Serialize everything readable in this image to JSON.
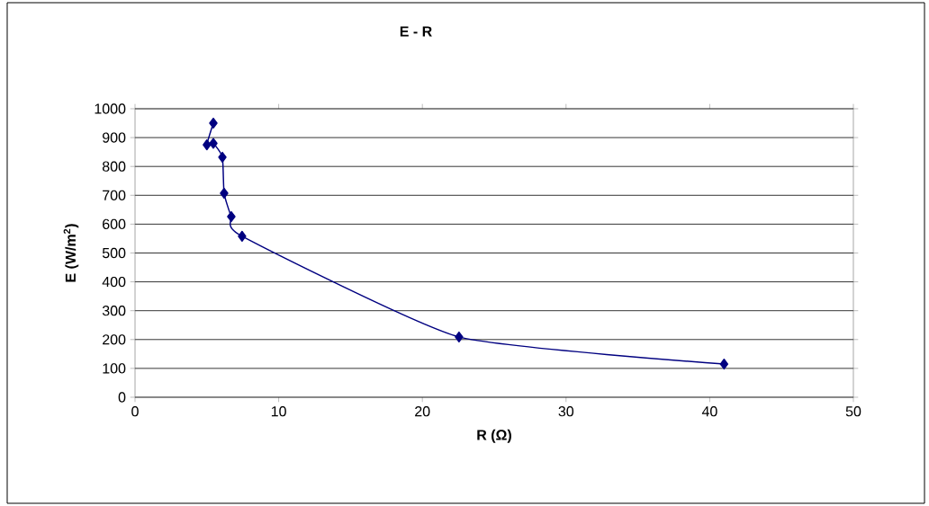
{
  "chart_data": {
    "type": "line",
    "title": "E - R",
    "xlabel": "R (Ω)",
    "ylabel": "E (W/m$^{2}$)",
    "x": [
      5.45,
      5.0,
      5.45,
      6.08,
      6.2,
      6.7,
      7.45,
      22.55,
      41.0
    ],
    "series": [
      {
        "color": "#000080",
        "values": [
          950,
          875,
          880,
          832,
          707,
          626,
          558,
          209,
          115
        ]
      }
    ],
    "xlim": [
      0,
      50
    ],
    "xticks": [
      0,
      10,
      20,
      30,
      40,
      50
    ],
    "ylim": [
      0,
      1000
    ],
    "yticks": [
      0,
      100,
      200,
      300,
      400,
      500,
      600,
      700,
      800,
      900,
      1000
    ],
    "grid": "y",
    "marker": "diamond",
    "line_style": "solid"
  }
}
